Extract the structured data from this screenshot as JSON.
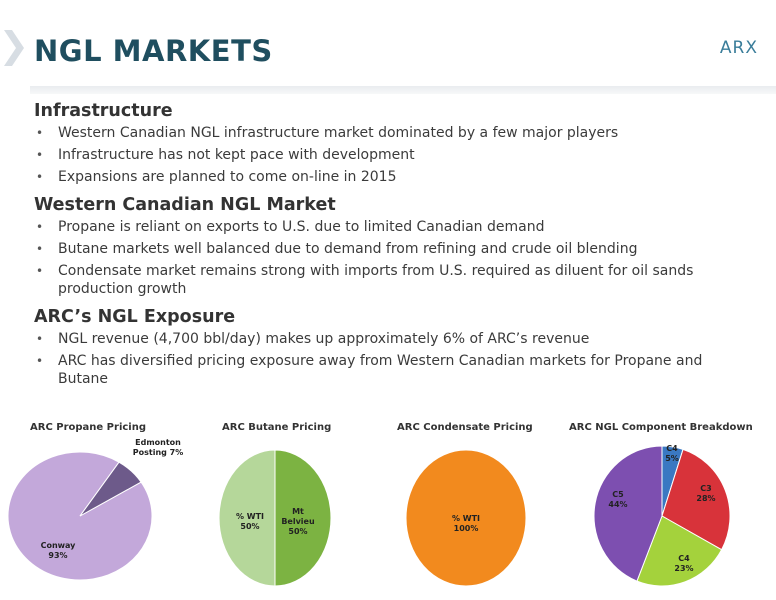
{
  "header": {
    "title": "NGL MARKETS",
    "brand": "ARX"
  },
  "sections": [
    {
      "heading": "Infrastructure",
      "bullets": [
        "Western Canadian NGL infrastructure market dominated by a few major players",
        "Infrastructure has not kept pace with development",
        "Expansions are planned to come on-line in 2015"
      ]
    },
    {
      "heading": "Western Canadian NGL Market",
      "bullets": [
        "Propane is reliant on exports to U.S. due to limited Canadian demand",
        "Butane markets well balanced due to demand from refining and crude oil blending",
        "Condensate market remains strong with imports from U.S. required as diluent for oil sands production growth"
      ]
    },
    {
      "heading": "ARC’s NGL Exposure",
      "bullets": [
        "NGL revenue (4,700 bbl/day) makes up approximately 6% of ARC’s revenue",
        "ARC has diversified pricing exposure away from Western Canadian markets for Propane and Butane"
      ]
    }
  ],
  "chart_data": [
    {
      "type": "pie",
      "title": "ARC Propane Pricing",
      "slices": [
        {
          "label": "Conway",
          "value": 93,
          "text": "93%",
          "color": "#c3a8da"
        },
        {
          "label": "Edmonton Posting",
          "value": 7,
          "text": "7%",
          "color": "#6d5a8a"
        }
      ]
    },
    {
      "type": "pie",
      "title": "ARC Butane Pricing",
      "slices": [
        {
          "label": "% WTI",
          "value": 50,
          "text": "50%",
          "color": "#b5d79a"
        },
        {
          "label": "Mt Belvieu",
          "value": 50,
          "text": "50%",
          "color": "#7cb342"
        }
      ]
    },
    {
      "type": "pie",
      "title": "ARC Condensate Pricing",
      "slices": [
        {
          "label": "% WTI",
          "value": 100,
          "text": "100%",
          "color": "#f28a1e"
        }
      ]
    },
    {
      "type": "pie",
      "title": "ARC NGL Component Breakdown",
      "slices": [
        {
          "label": "C4",
          "value": 5,
          "text": "5%",
          "color": "#3a78c2"
        },
        {
          "label": "C3",
          "value": 28,
          "text": "28%",
          "color": "#d8333a"
        },
        {
          "label": "C4",
          "value": 23,
          "text": "23%",
          "color": "#a4d23c"
        },
        {
          "label": "C5",
          "value": 44,
          "text": "44%",
          "color": "#7d4fb0"
        }
      ]
    }
  ]
}
